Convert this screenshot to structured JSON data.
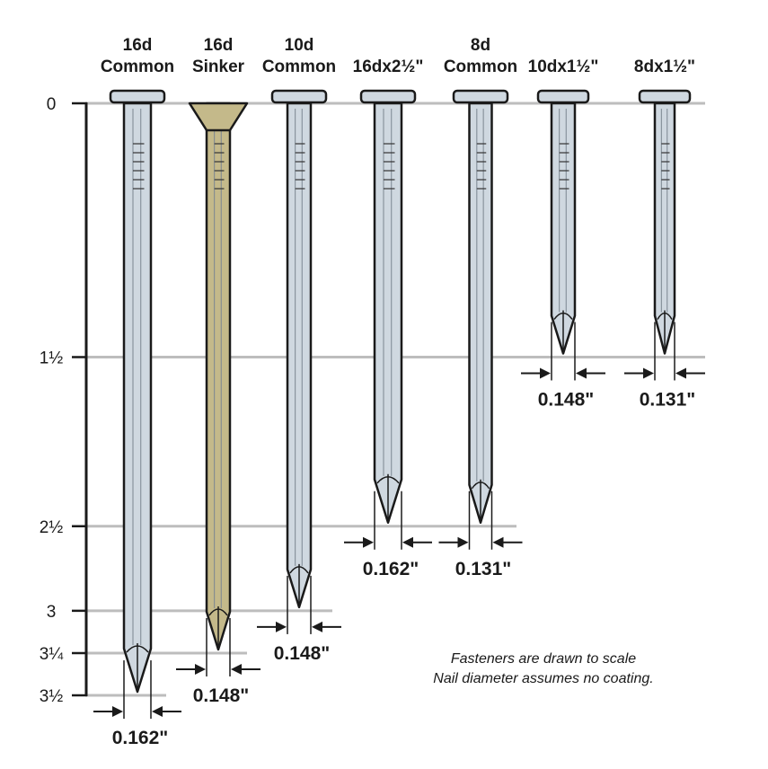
{
  "scale": {
    "unit": "inches",
    "ticks": [
      {
        "value": 0,
        "label": "0"
      },
      {
        "value": 1.5,
        "label": "1½"
      },
      {
        "value": 2.5,
        "label": "2½"
      },
      {
        "value": 3,
        "label": "3"
      },
      {
        "value": 3.25,
        "label": "3¼"
      },
      {
        "value": 3.5,
        "label": "3½"
      }
    ]
  },
  "nails": [
    {
      "name": "16d Common",
      "lines": [
        "16d",
        "Common"
      ],
      "length": 3.5,
      "diameter": "0.162\"",
      "finish": "bright",
      "head": "flat"
    },
    {
      "name": "16d Sinker",
      "lines": [
        "16d",
        "Sinker"
      ],
      "length": 3.25,
      "diameter": "0.148\"",
      "finish": "coated",
      "head": "countersunk"
    },
    {
      "name": "10d Common",
      "lines": [
        "10d",
        "Common"
      ],
      "length": 3,
      "diameter": "0.148\"",
      "finish": "bright",
      "head": "flat"
    },
    {
      "name": "16dx2½\"",
      "lines": [
        "",
        "16dx2½\""
      ],
      "length": 2.5,
      "diameter": "0.162\"",
      "finish": "bright",
      "head": "flat"
    },
    {
      "name": "8d Common",
      "lines": [
        "8d",
        "Common"
      ],
      "length": 2.5,
      "diameter": "0.131\"",
      "finish": "bright",
      "head": "flat"
    },
    {
      "name": "10dx1½\"",
      "lines": [
        "",
        "10dx1½\""
      ],
      "length": 1.5,
      "diameter": "0.148\"",
      "finish": "bright",
      "head": "flat"
    },
    {
      "name": "8dx1½\"",
      "lines": [
        "",
        "8dx1½\""
      ],
      "length": 1.5,
      "diameter": "0.131\"",
      "finish": "bright",
      "head": "flat"
    }
  ],
  "notes": [
    "Fasteners are drawn to scale",
    "Nail diameter assumes no coating."
  ],
  "colors": {
    "bright": "#cfd8e0",
    "coated": "#c4b98a",
    "gridline": "#bdbdbd",
    "outline": "#1a1a1a"
  }
}
